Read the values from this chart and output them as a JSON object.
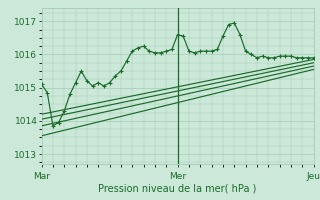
{
  "bg_color": "#cce8d8",
  "grid_color": "#aacfba",
  "line_color": "#1a6b2a",
  "title": "Pression niveau de la mer( hPa )",
  "ylabel_ticks": [
    1013,
    1014,
    1015,
    1016,
    1017
  ],
  "ylim": [
    1012.7,
    1017.4
  ],
  "xlim": [
    0,
    48
  ],
  "xtick_positions": [
    0,
    24,
    48
  ],
  "xtick_labels": [
    "Mar",
    "Mer",
    "Jeu"
  ],
  "vline_positions": [
    24
  ],
  "series_jagged": [
    [
      0,
      1015.1
    ],
    [
      1,
      1014.85
    ],
    [
      2,
      1013.85
    ],
    [
      3,
      1013.95
    ],
    [
      4,
      1014.3
    ],
    [
      5,
      1014.8
    ],
    [
      6,
      1015.15
    ],
    [
      7,
      1015.5
    ],
    [
      8,
      1015.2
    ],
    [
      9,
      1015.05
    ],
    [
      10,
      1015.15
    ],
    [
      11,
      1015.05
    ],
    [
      12,
      1015.15
    ],
    [
      13,
      1015.35
    ],
    [
      14,
      1015.5
    ],
    [
      15,
      1015.8
    ],
    [
      16,
      1016.1
    ],
    [
      17,
      1016.2
    ],
    [
      18,
      1016.25
    ],
    [
      19,
      1016.1
    ],
    [
      20,
      1016.05
    ],
    [
      21,
      1016.05
    ],
    [
      22,
      1016.1
    ],
    [
      23,
      1016.15
    ],
    [
      24,
      1016.6
    ],
    [
      25,
      1016.55
    ],
    [
      26,
      1016.1
    ],
    [
      27,
      1016.05
    ],
    [
      28,
      1016.1
    ],
    [
      29,
      1016.1
    ],
    [
      30,
      1016.1
    ],
    [
      31,
      1016.15
    ],
    [
      32,
      1016.55
    ],
    [
      33,
      1016.9
    ],
    [
      34,
      1016.95
    ],
    [
      35,
      1016.6
    ],
    [
      36,
      1016.1
    ],
    [
      37,
      1016.0
    ],
    [
      38,
      1015.9
    ],
    [
      39,
      1015.95
    ],
    [
      40,
      1015.9
    ],
    [
      41,
      1015.9
    ],
    [
      42,
      1015.95
    ],
    [
      43,
      1015.95
    ],
    [
      44,
      1015.95
    ],
    [
      45,
      1015.9
    ],
    [
      46,
      1015.9
    ],
    [
      47,
      1015.9
    ],
    [
      48,
      1015.9
    ]
  ],
  "linear_lines": [
    [
      [
        0,
        1014.2
      ],
      [
        48,
        1015.85
      ]
    ],
    [
      [
        0,
        1014.05
      ],
      [
        48,
        1015.75
      ]
    ],
    [
      [
        0,
        1013.85
      ],
      [
        48,
        1015.65
      ]
    ],
    [
      [
        0,
        1013.55
      ],
      [
        48,
        1015.55
      ]
    ]
  ]
}
